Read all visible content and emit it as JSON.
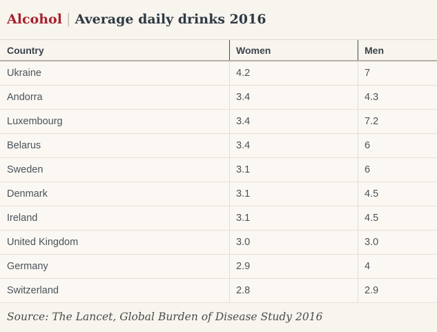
{
  "header": {
    "category": "Alcohol",
    "separator": "|",
    "title": "Average daily drinks 2016"
  },
  "table": {
    "columns": [
      "Country",
      "Women",
      "Men"
    ],
    "rows": [
      {
        "country": "Ukraine",
        "women": "4.2",
        "men": "7"
      },
      {
        "country": "Andorra",
        "women": "3.4",
        "men": "4.3"
      },
      {
        "country": "Luxembourg",
        "women": "3.4",
        "men": "7.2"
      },
      {
        "country": "Belarus",
        "women": "3.4",
        "men": "6"
      },
      {
        "country": "Sweden",
        "women": "3.1",
        "men": "6"
      },
      {
        "country": "Denmark",
        "women": "3.1",
        "men": "4.5"
      },
      {
        "country": "Ireland",
        "women": "3.1",
        "men": "4.5"
      },
      {
        "country": "United Kingdom",
        "women": "3.0",
        "men": "3.0"
      },
      {
        "country": "Germany",
        "women": "2.9",
        "men": "4"
      },
      {
        "country": "Switzerland",
        "women": "2.8",
        "men": "2.9"
      }
    ]
  },
  "source": "Source: The Lancet, Global Burden of Disease Study 2016",
  "colors": {
    "accent_red": "#a6232e",
    "title_text": "#2e3a43",
    "background": "#f8f4ee",
    "row_background": "#fbf8f3",
    "row_divider": "#e4e0d9",
    "header_divider": "#45494d"
  },
  "chart_data": {
    "type": "table",
    "title": "Alcohol | Average daily drinks 2016",
    "columns": [
      "Country",
      "Women",
      "Men"
    ],
    "categories": [
      "Ukraine",
      "Andorra",
      "Luxembourg",
      "Belarus",
      "Sweden",
      "Denmark",
      "Ireland",
      "United Kingdom",
      "Germany",
      "Switzerland"
    ],
    "series": [
      {
        "name": "Women",
        "values": [
          4.2,
          3.4,
          3.4,
          3.4,
          3.1,
          3.1,
          3.1,
          3.0,
          2.9,
          2.8
        ]
      },
      {
        "name": "Men",
        "values": [
          7,
          4.3,
          7.2,
          6,
          6,
          4.5,
          4.5,
          3.0,
          4,
          2.9
        ]
      }
    ],
    "source": "Source: The Lancet, Global Burden of Disease Study 2016"
  }
}
